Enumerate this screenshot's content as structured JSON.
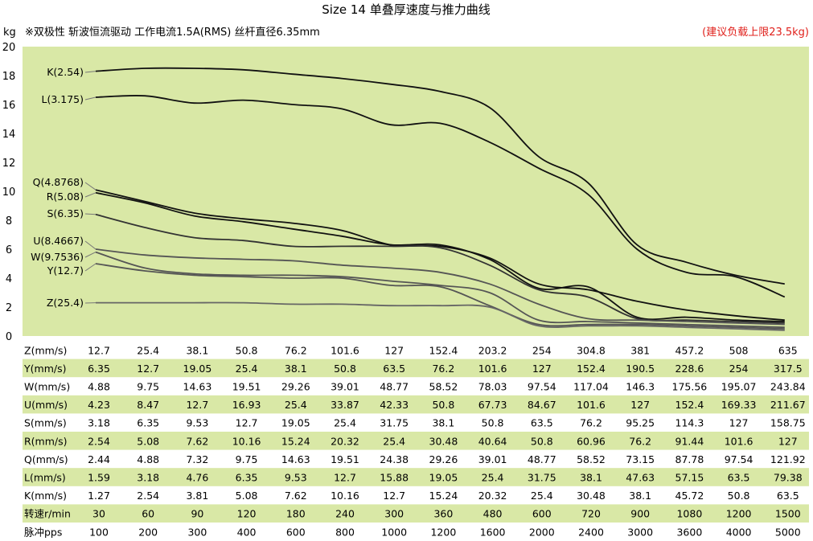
{
  "chart_data": {
    "type": "line",
    "title": "Size 14 单叠厚速度与推力曲线",
    "subtitle": "※双极性 斩波恒流驱动 工作电流1.5A(RMS)  丝杆直径6.35mm",
    "note": "(建议负载上限23.5kg)",
    "ylabel": "kg",
    "ylim": [
      0,
      20
    ],
    "yticks": [
      "0",
      "2",
      "4",
      "6",
      "8",
      "10",
      "12",
      "14",
      "16",
      "18",
      "20"
    ],
    "xlabel_rows": [
      {
        "label": "Z(mm/s)",
        "values": [
          "12.7",
          "25.4",
          "38.1",
          "50.8",
          "76.2",
          "101.6",
          "127",
          "152.4",
          "203.2",
          "254",
          "304.8",
          "381",
          "457.2",
          "508",
          "635"
        ]
      },
      {
        "label": "Y(mm/s)",
        "values": [
          "6.35",
          "12.7",
          "19.05",
          "25.4",
          "38.1",
          "50.8",
          "63.5",
          "76.2",
          "101.6",
          "127",
          "152.4",
          "190.5",
          "228.6",
          "254",
          "317.5"
        ]
      },
      {
        "label": "W(mm/s)",
        "values": [
          "4.88",
          "9.75",
          "14.63",
          "19.51",
          "29.26",
          "39.01",
          "48.77",
          "58.52",
          "78.03",
          "97.54",
          "117.04",
          "146.3",
          "175.56",
          "195.07",
          "243.84"
        ]
      },
      {
        "label": "U(mm/s)",
        "values": [
          "4.23",
          "8.47",
          "12.7",
          "16.93",
          "25.4",
          "33.87",
          "42.33",
          "50.8",
          "67.73",
          "84.67",
          "101.6",
          "127",
          "152.4",
          "169.33",
          "211.67"
        ]
      },
      {
        "label": "S(mm/s)",
        "values": [
          "3.18",
          "6.35",
          "9.53",
          "12.7",
          "19.05",
          "25.4",
          "31.75",
          "38.1",
          "50.8",
          "63.5",
          "76.2",
          "95.25",
          "114.3",
          "127",
          "158.75"
        ]
      },
      {
        "label": "R(mm/s)",
        "values": [
          "2.54",
          "5.08",
          "7.62",
          "10.16",
          "15.24",
          "20.32",
          "25.4",
          "30.48",
          "40.64",
          "50.8",
          "60.96",
          "76.2",
          "91.44",
          "101.6",
          "127"
        ]
      },
      {
        "label": "Q(mm/s)",
        "values": [
          "2.44",
          "4.88",
          "7.32",
          "9.75",
          "14.63",
          "19.51",
          "24.38",
          "29.26",
          "39.01",
          "48.77",
          "58.52",
          "73.15",
          "87.78",
          "97.54",
          "121.92"
        ]
      },
      {
        "label": "L(mm/s)",
        "values": [
          "1.59",
          "3.18",
          "4.76",
          "6.35",
          "9.53",
          "12.7",
          "15.88",
          "19.05",
          "25.4",
          "31.75",
          "38.1",
          "47.63",
          "57.15",
          "63.5",
          "79.38"
        ]
      },
      {
        "label": "K(mm/s)",
        "values": [
          "1.27",
          "2.54",
          "3.81",
          "5.08",
          "7.62",
          "10.16",
          "12.7",
          "15.24",
          "20.32",
          "25.4",
          "30.48",
          "38.1",
          "45.72",
          "50.8",
          "63.5"
        ]
      },
      {
        "label": "转速r/min",
        "values": [
          "30",
          "60",
          "90",
          "120",
          "180",
          "240",
          "300",
          "360",
          "480",
          "600",
          "720",
          "900",
          "1080",
          "1200",
          "1500"
        ]
      },
      {
        "label": "脉冲pps",
        "values": [
          "100",
          "200",
          "300",
          "400",
          "600",
          "800",
          "1000",
          "1200",
          "1600",
          "2000",
          "2400",
          "3000",
          "3600",
          "4000",
          "5000"
        ]
      }
    ],
    "series": [
      {
        "name": "K(2.54)",
        "color": "#111111",
        "values": [
          18.3,
          18.5,
          18.5,
          18.4,
          18.1,
          17.8,
          17.4,
          16.9,
          15.8,
          12.4,
          10.6,
          6.3,
          5.1,
          4.2,
          3.6
        ]
      },
      {
        "name": "L(3.175)",
        "color": "#111111",
        "values": [
          16.5,
          16.6,
          16.1,
          16.3,
          16.0,
          15.7,
          14.6,
          14.7,
          13.4,
          11.6,
          9.8,
          6.0,
          4.4,
          4.1,
          2.7
        ]
      },
      {
        "name": "Q(4.8768)",
        "color": "#111111",
        "values": [
          10.1,
          9.3,
          8.5,
          8.1,
          7.8,
          7.3,
          6.3,
          6.2,
          5.4,
          3.6,
          3.2,
          2.4,
          1.8,
          1.4,
          1.1
        ]
      },
      {
        "name": "R(5.08)",
        "color": "#111111",
        "values": [
          9.9,
          9.2,
          8.3,
          7.9,
          7.4,
          6.9,
          6.3,
          6.3,
          5.3,
          3.3,
          3.4,
          1.3,
          1.3,
          1.1,
          1.0
        ]
      },
      {
        "name": "S(6.35)",
        "color": "#333333",
        "values": [
          8.4,
          7.5,
          6.8,
          6.6,
          6.2,
          6.2,
          6.2,
          6.1,
          4.9,
          3.2,
          2.7,
          1.2,
          1.1,
          1.0,
          0.9
        ]
      },
      {
        "name": "U(8.4667)",
        "color": "#555555",
        "values": [
          6.0,
          5.6,
          5.4,
          5.3,
          5.2,
          4.9,
          4.7,
          4.4,
          3.6,
          2.2,
          1.2,
          1.1,
          1.0,
          0.9,
          0.8
        ]
      },
      {
        "name": "W(9.7536)",
        "color": "#555555",
        "values": [
          5.8,
          4.7,
          4.3,
          4.2,
          4.2,
          4.1,
          3.8,
          3.5,
          3.0,
          1.1,
          1.0,
          0.9,
          0.8,
          0.7,
          0.6
        ]
      },
      {
        "name": "Y(12.7)",
        "color": "#555555",
        "values": [
          5.0,
          4.5,
          4.2,
          4.1,
          4.0,
          4.0,
          3.5,
          3.4,
          2.1,
          0.8,
          0.8,
          0.8,
          0.7,
          0.6,
          0.5
        ]
      },
      {
        "name": "Z(25.4)",
        "color": "#666666",
        "values": [
          2.3,
          2.3,
          2.3,
          2.3,
          2.2,
          2.2,
          2.1,
          2.1,
          2.0,
          0.7,
          0.7,
          0.7,
          0.6,
          0.5,
          0.4
        ]
      }
    ],
    "grid": false,
    "colors": {
      "plot_bg": "#d9e8a6",
      "row_band": "#d9e8a6",
      "note": "#e0201b"
    }
  }
}
